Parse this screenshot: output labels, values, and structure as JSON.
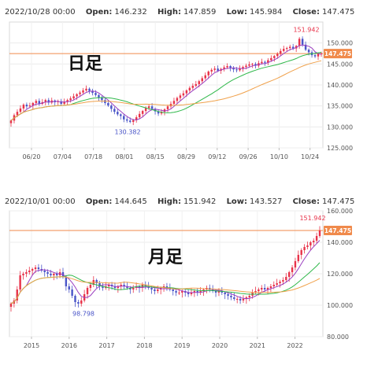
{
  "chart_data": [
    {
      "type": "candlestick",
      "header": {
        "date": "2022/10/28 00:00",
        "open_label": "Open:",
        "open": "146.232",
        "high_label": "High:",
        "high": "147.859",
        "low_label": "Low:",
        "low": "145.984",
        "close_label": "Close:",
        "close": "147.475"
      },
      "title": "日足",
      "y_ticks": [
        "150.000",
        "145.000",
        "140.000",
        "135.000",
        "130.000",
        "125.000"
      ],
      "ylim": [
        125,
        155
      ],
      "x_ticks": [
        "06/20",
        "07/04",
        "07/18",
        "08/01",
        "08/15",
        "08/29",
        "09/12",
        "09/26",
        "10/10",
        "10/24"
      ],
      "price_line": 147.475,
      "price_label": "147.475",
      "annotations": [
        {
          "text": "151.942",
          "value": 151.942,
          "kind": "high"
        },
        {
          "text": "130.382",
          "value": 130.382,
          "kind": "low"
        }
      ],
      "colors": {
        "up": "#e8334a",
        "down": "#4a55c8",
        "ma_short": "#9b3fc0",
        "ma_mid": "#2fb84a",
        "ma_long": "#f0a14b",
        "price_line": "#f08a4b"
      },
      "series": [
        131.5,
        132.8,
        133.6,
        134.4,
        135.3,
        134.9,
        135.1,
        135.7,
        136.2,
        135.5,
        135.9,
        136.4,
        135.8,
        136.3,
        135.9,
        136.1,
        135.5,
        136.0,
        136.4,
        136.8,
        137.3,
        137.8,
        138.2,
        138.7,
        139.1,
        138.6,
        138.1,
        137.6,
        137.0,
        136.4,
        135.7,
        135.1,
        134.3,
        133.6,
        133.0,
        132.6,
        131.8,
        131.5,
        131.2,
        131.6,
        132.3,
        133.1,
        133.8,
        134.5,
        134.9,
        134.3,
        133.7,
        133.2,
        133.6,
        134.2,
        134.9,
        135.5,
        136.2,
        136.9,
        137.5,
        138.0,
        138.7,
        139.3,
        139.8,
        140.2,
        140.9,
        141.6,
        142.3,
        143.2,
        143.6,
        143.9,
        143.4,
        143.8,
        144.2,
        144.5,
        144.1,
        143.7,
        143.5,
        143.9,
        144.3,
        144.6,
        144.9,
        145.0,
        144.6,
        145.2,
        145.5,
        145.3,
        145.9,
        146.4,
        146.9,
        147.4,
        148.1,
        148.6,
        148.8,
        149.1,
        148.7,
        149.3,
        151.0,
        149.6,
        148.4,
        147.8,
        147.1,
        146.8,
        147.4,
        147.5
      ]
    },
    {
      "type": "candlestick",
      "header": {
        "date": "2022/10/01 00:00",
        "open_label": "Open:",
        "open": "144.645",
        "high_label": "High:",
        "high": "151.942",
        "low_label": "Low:",
        "low": "143.527",
        "close_label": "Close:",
        "close": "147.475"
      },
      "title": "月足",
      "y_ticks": [
        "160.000",
        "140.000",
        "120.000",
        "100.000",
        "80.000"
      ],
      "ylim": [
        80,
        160
      ],
      "x_ticks": [
        "2015",
        "2016",
        "2017",
        "2018",
        "2019",
        "2020",
        "2021",
        "2022"
      ],
      "price_line": 147.475,
      "price_label": "147.475",
      "annotations": [
        {
          "text": "151.942",
          "value": 151.942,
          "kind": "high"
        },
        {
          "text": "98.798",
          "value": 98.798,
          "kind": "low"
        }
      ],
      "colors": {
        "up": "#e8334a",
        "down": "#4a55c8",
        "ma_short": "#9b3fc0",
        "ma_mid": "#2fb84a",
        "ma_long": "#f0a14b",
        "price_line": "#f08a4b"
      },
      "series": [
        101,
        103,
        110,
        119,
        120,
        121,
        122,
        123,
        124,
        123,
        122,
        121,
        120,
        119,
        120,
        119,
        121,
        118,
        112,
        110,
        106,
        102,
        101,
        103,
        107,
        111,
        113,
        116,
        114,
        112,
        111,
        112,
        113,
        112,
        111,
        112,
        113,
        112,
        111,
        110,
        111,
        112,
        111,
        113,
        112,
        111,
        110,
        109,
        110,
        111,
        112,
        111,
        110,
        109,
        108,
        108,
        109,
        108,
        107,
        108,
        109,
        108,
        109,
        110,
        111,
        110,
        109,
        108,
        109,
        108,
        107,
        106,
        105,
        104,
        104,
        103,
        104,
        105,
        106,
        108,
        109,
        110,
        111,
        110,
        111,
        112,
        113,
        114,
        115,
        116,
        118,
        121,
        124,
        128,
        132,
        135,
        137,
        138,
        140,
        141,
        144,
        147.5
      ]
    }
  ]
}
